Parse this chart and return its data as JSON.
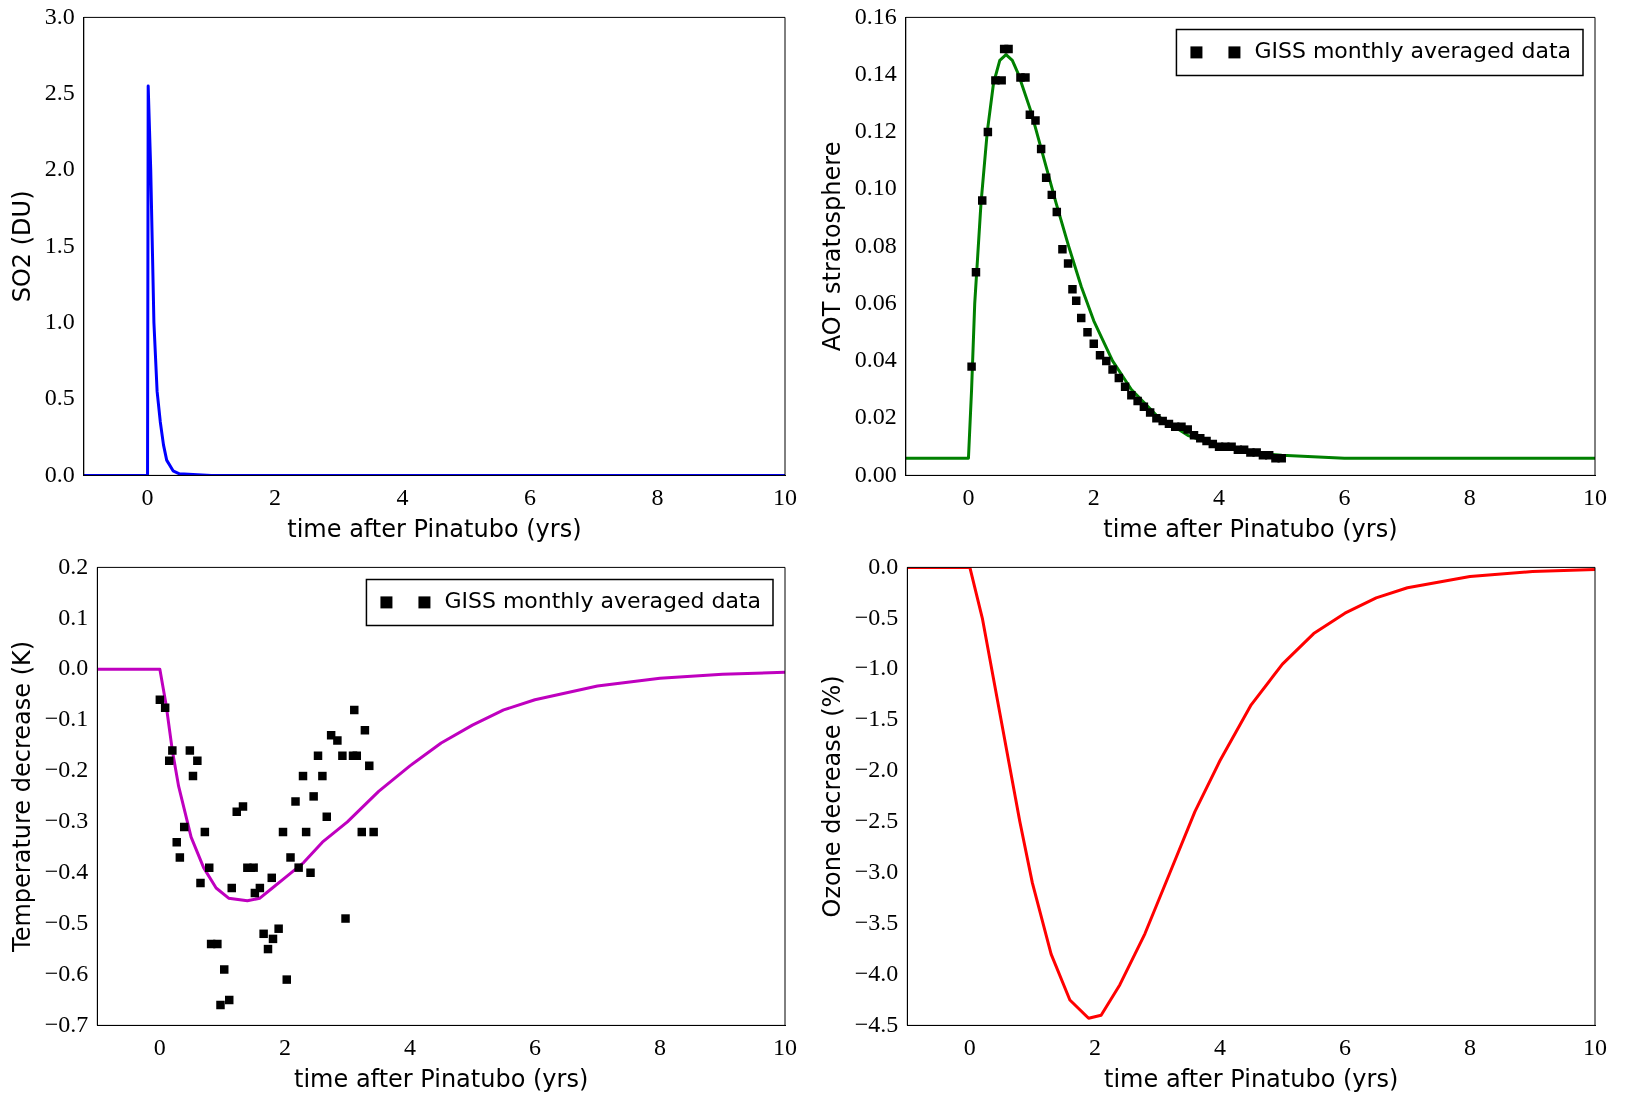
{
  "chart_data": [
    {
      "type": "line",
      "xlabel": "time after Pinatubo (yrs)",
      "ylabel": "SO2 (DU)",
      "xlim": [
        -1,
        10
      ],
      "xticks": [
        0,
        2,
        4,
        6,
        8,
        10
      ],
      "ylim": [
        0,
        3
      ],
      "yticks": [
        {
          "value": 0,
          "label": "0.0"
        },
        {
          "value": 0.5,
          "label": "0.5"
        },
        {
          "value": 1,
          "label": "1.0"
        },
        {
          "value": 1.5,
          "label": "1.5"
        },
        {
          "value": 2,
          "label": "2.0"
        },
        {
          "value": 2.5,
          "label": "2.5"
        },
        {
          "value": 3,
          "label": "3.0"
        }
      ],
      "grid": false,
      "legend": false,
      "marker": "none",
      "series": [
        {
          "color": "#0000ff",
          "x": [
            -1,
            0,
            0.01,
            0.05,
            0.1,
            0.15,
            0.2,
            0.25,
            0.3,
            0.4,
            0.5,
            1,
            10
          ],
          "values": [
            0,
            0,
            2.55,
            2.0,
            1.0,
            0.55,
            0.35,
            0.2,
            0.1,
            0.03,
            0.01,
            0,
            0
          ]
        }
      ]
    },
    {
      "type": "line",
      "xlabel": "time after Pinatubo (yrs)",
      "ylabel": "AOT stratosphere",
      "xlim": [
        -1,
        10
      ],
      "xticks": [
        0,
        2,
        4,
        6,
        8,
        10
      ],
      "ylim": [
        0,
        0.16
      ],
      "yticks": [
        {
          "value": 0,
          "label": "0.00"
        },
        {
          "value": 0.02,
          "label": "0.02"
        },
        {
          "value": 0.04,
          "label": "0.04"
        },
        {
          "value": 0.06,
          "label": "0.06"
        },
        {
          "value": 0.08,
          "label": "0.08"
        },
        {
          "value": 0.1,
          "label": "0.10"
        },
        {
          "value": 0.12,
          "label": "0.12"
        },
        {
          "value": 0.14,
          "label": "0.14"
        },
        {
          "value": 0.16,
          "label": "0.16"
        }
      ],
      "grid": false,
      "legend": "top right",
      "series": [
        {
          "type": "scatter",
          "name": "GISS monthly averaged data",
          "color": "#000000",
          "marker": "square",
          "x": [
            0.05,
            0.12,
            0.22,
            0.31,
            0.43,
            0.53,
            0.57,
            0.64,
            0.83,
            0.91,
            0.98,
            1.07,
            1.16,
            1.24,
            1.33,
            1.41,
            1.5,
            1.59,
            1.66,
            1.72,
            1.8,
            1.9,
            2.0,
            2.1,
            2.2,
            2.3,
            2.4,
            2.5,
            2.6,
            2.7,
            2.8,
            2.9,
            3.0,
            3.1,
            3.2,
            3.3,
            3.4,
            3.5,
            3.6,
            3.7,
            3.8,
            3.9,
            4.0,
            4.1,
            4.2,
            4.3,
            4.4,
            4.5,
            4.6,
            4.7,
            4.8,
            4.9,
            5.0
          ],
          "values": [
            0.038,
            0.071,
            0.096,
            0.12,
            0.138,
            0.138,
            0.149,
            0.149,
            0.139,
            0.139,
            0.126,
            0.124,
            0.114,
            0.104,
            0.098,
            0.092,
            0.079,
            0.074,
            0.065,
            0.061,
            0.055,
            0.05,
            0.046,
            0.042,
            0.04,
            0.037,
            0.034,
            0.031,
            0.028,
            0.026,
            0.024,
            0.022,
            0.02,
            0.019,
            0.018,
            0.017,
            0.017,
            0.016,
            0.014,
            0.013,
            0.012,
            0.011,
            0.01,
            0.01,
            0.01,
            0.009,
            0.009,
            0.008,
            0.008,
            0.007,
            0.007,
            0.006,
            0.006
          ]
        },
        {
          "color": "#008000",
          "marker": "none",
          "x": [
            -1,
            0,
            0.05,
            0.1,
            0.2,
            0.3,
            0.4,
            0.5,
            0.6,
            0.7,
            0.8,
            1.0,
            1.2,
            1.4,
            1.6,
            1.8,
            2.0,
            2.3,
            2.6,
            3.0,
            3.5,
            4.0,
            4.5,
            5,
            6,
            10
          ],
          "values": [
            0.006,
            0.006,
            0.03,
            0.06,
            0.095,
            0.12,
            0.137,
            0.145,
            0.147,
            0.145,
            0.14,
            0.127,
            0.111,
            0.095,
            0.08,
            0.066,
            0.054,
            0.04,
            0.03,
            0.021,
            0.014,
            0.01,
            0.008,
            0.007,
            0.006,
            0.006
          ]
        }
      ]
    },
    {
      "type": "line",
      "xlabel": "time after Pinatubo (yrs)",
      "ylabel": "Temperature decrease (K)",
      "xlim": [
        -1,
        10
      ],
      "xticks": [
        0,
        2,
        4,
        6,
        8,
        10
      ],
      "ylim": [
        -0.7,
        0.2
      ],
      "yticks": [
        {
          "value": -0.7,
          "label": "−0.7"
        },
        {
          "value": -0.6,
          "label": "−0.6"
        },
        {
          "value": -0.5,
          "label": "−0.5"
        },
        {
          "value": -0.4,
          "label": "−0.4"
        },
        {
          "value": -0.3,
          "label": "−0.3"
        },
        {
          "value": -0.2,
          "label": "−0.2"
        },
        {
          "value": -0.1,
          "label": "−0.1"
        },
        {
          "value": 0,
          "label": "0.0"
        },
        {
          "value": 0.1,
          "label": "0.1"
        },
        {
          "value": 0.2,
          "label": "0.2"
        }
      ],
      "grid": false,
      "legend": "top right",
      "series": [
        {
          "type": "scatter",
          "name": "GISS monthly averaged data",
          "color": "#000000",
          "marker": "square",
          "x": [
            0.0,
            0.085,
            0.15,
            0.2,
            0.27,
            0.32,
            0.39,
            0.48,
            0.53,
            0.6,
            0.65,
            0.72,
            0.79,
            0.82,
            0.92,
            0.97,
            1.03,
            1.11,
            1.15,
            1.23,
            1.33,
            1.4,
            1.5,
            1.52,
            1.6,
            1.66,
            1.73,
            1.79,
            1.81,
            1.9,
            1.97,
            2.03,
            2.09,
            2.17,
            2.22,
            2.29,
            2.34,
            2.41,
            2.46,
            2.53,
            2.6,
            2.67,
            2.74,
            2.84,
            2.92,
            2.97,
            3.09,
            3.11,
            3.15,
            3.23,
            3.28,
            3.35,
            3.42
          ],
          "values": [
            -0.06,
            -0.076,
            -0.18,
            -0.16,
            -0.34,
            -0.37,
            -0.31,
            -0.16,
            -0.21,
            -0.18,
            -0.42,
            -0.32,
            -0.39,
            -0.54,
            -0.54,
            -0.66,
            -0.59,
            -0.65,
            -0.43,
            -0.28,
            -0.27,
            -0.39,
            -0.39,
            -0.44,
            -0.43,
            -0.52,
            -0.55,
            -0.41,
            -0.53,
            -0.51,
            -0.32,
            -0.61,
            -0.37,
            -0.26,
            -0.39,
            -0.21,
            -0.32,
            -0.4,
            -0.25,
            -0.17,
            -0.21,
            -0.29,
            -0.13,
            -0.14,
            -0.17,
            -0.49,
            -0.17,
            -0.08,
            -0.17,
            -0.32,
            -0.12,
            -0.19,
            -0.32
          ]
        },
        {
          "color": "#bf00bf",
          "marker": "none",
          "x": [
            -1,
            0,
            0.1,
            0.2,
            0.3,
            0.5,
            0.7,
            0.9,
            1.1,
            1.4,
            1.6,
            1.8,
            2.0,
            2.3,
            2.6,
            3.0,
            3.5,
            4,
            4.5,
            5,
            5.5,
            6,
            7,
            8,
            9,
            10
          ],
          "values": [
            0,
            0,
            -0.07,
            -0.16,
            -0.23,
            -0.33,
            -0.39,
            -0.43,
            -0.45,
            -0.455,
            -0.45,
            -0.43,
            -0.41,
            -0.38,
            -0.34,
            -0.3,
            -0.24,
            -0.19,
            -0.145,
            -0.11,
            -0.08,
            -0.06,
            -0.033,
            -0.018,
            -0.01,
            -0.006
          ]
        }
      ]
    },
    {
      "type": "line",
      "xlabel": "time after Pinatubo (yrs)",
      "ylabel": "Ozone decrease (%)",
      "xlim": [
        -1,
        10
      ],
      "xticks": [
        0,
        2,
        4,
        6,
        8,
        10
      ],
      "ylim": [
        -4.5,
        0
      ],
      "yticks": [
        {
          "value": -4.5,
          "label": "−4.5"
        },
        {
          "value": -4,
          "label": "−4.0"
        },
        {
          "value": -3.5,
          "label": "−3.5"
        },
        {
          "value": -3,
          "label": "−3.0"
        },
        {
          "value": -2.5,
          "label": "−2.5"
        },
        {
          "value": -2,
          "label": "−2.0"
        },
        {
          "value": -1.5,
          "label": "−1.5"
        },
        {
          "value": -1,
          "label": "−1.0"
        },
        {
          "value": -0.5,
          "label": "−0.5"
        },
        {
          "value": 0,
          "label": "0.0"
        }
      ],
      "grid": false,
      "legend": false,
      "marker": "none",
      "series": [
        {
          "color": "#ff0000",
          "x": [
            -1,
            0,
            0.2,
            0.5,
            0.8,
            1.0,
            1.3,
            1.6,
            1.9,
            2.1,
            2.4,
            2.8,
            3.2,
            3.6,
            4,
            4.5,
            5,
            5.5,
            6,
            6.5,
            7,
            8,
            9,
            10
          ],
          "values": [
            0,
            0,
            -0.5,
            -1.5,
            -2.5,
            -3.1,
            -3.8,
            -4.25,
            -4.43,
            -4.4,
            -4.1,
            -3.6,
            -3.0,
            -2.4,
            -1.9,
            -1.35,
            -0.95,
            -0.65,
            -0.45,
            -0.3,
            -0.2,
            -0.09,
            -0.04,
            -0.02
          ]
        }
      ]
    }
  ]
}
